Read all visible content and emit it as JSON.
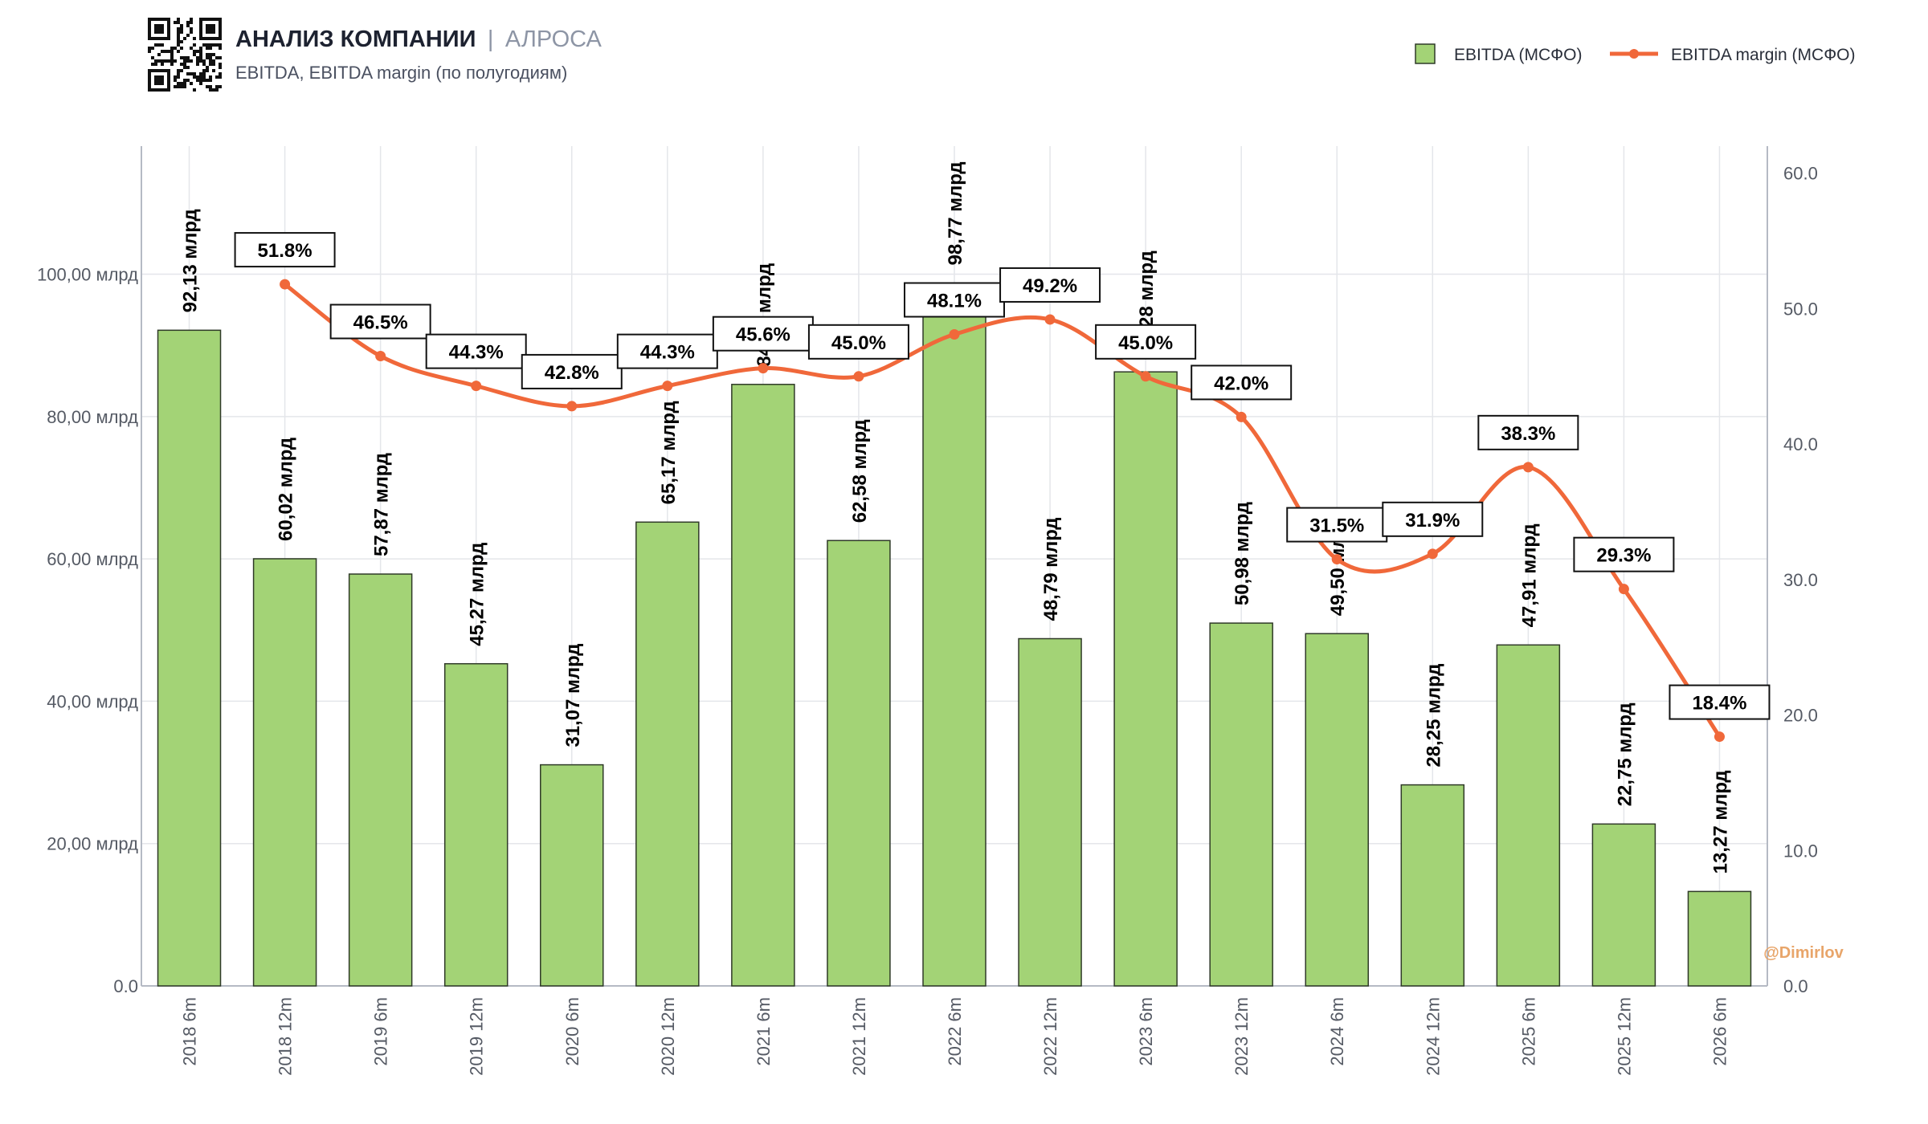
{
  "header": {
    "title": "АНАЛИЗ КОМПАНИИ",
    "separator": "|",
    "company": "АЛРОСА",
    "subtitle": "EBITDA, EBITDA margin (по полугодиям)"
  },
  "legend": {
    "bar": "EBITDA (МСФО)",
    "line": "EBITDA margin (МСФО)"
  },
  "watermark": "@Dimirlov",
  "colors": {
    "bar_fill": "#a3d376",
    "bar_stroke": "#2f3a28",
    "line": "#f0683a",
    "grid": "#e4e6ea",
    "axis": "#b5bac4"
  },
  "chart_data": {
    "type": "bar",
    "categories": [
      "2018 6m",
      "2018 12m",
      "2019 6m",
      "2019 12m",
      "2020 6m",
      "2020 12m",
      "2021 6m",
      "2021 12m",
      "2022 6m",
      "2022 12m",
      "2023 6m",
      "2023 12m",
      "2024 6m",
      "2024 12m",
      "2025 6m",
      "2025 12m",
      "2026 6m"
    ],
    "series": [
      {
        "name": "EBITDA (МСФО)",
        "type": "bar",
        "axis": "left",
        "values": [
          92.13,
          60.02,
          57.87,
          45.27,
          31.07,
          65.17,
          84.52,
          62.58,
          98.77,
          48.79,
          86.28,
          50.98,
          49.5,
          28.25,
          47.91,
          22.75,
          13.27
        ],
        "labels": [
          "92,13 млрд",
          "60,02 млрд",
          "57,87 млрд",
          "45,27 млрд",
          "31,07 млрд",
          "65,17 млрд",
          "84,52 млрд",
          "62,58 млрд",
          "98,77 млрд",
          "48,79 млрд",
          "86,28 млрд",
          "50,98 млрд",
          "49,50 млрд",
          "28,25 млрд",
          "47,91 млрд",
          "22,75 млрд",
          "13,27 млрд"
        ]
      },
      {
        "name": "EBITDA margin (МСФО)",
        "type": "line",
        "axis": "right",
        "values": [
          null,
          51.8,
          46.5,
          44.3,
          42.8,
          44.3,
          45.6,
          45.0,
          48.1,
          49.2,
          45.0,
          42.0,
          31.5,
          31.9,
          38.3,
          29.3,
          18.4
        ],
        "labels": [
          null,
          "51.8%",
          "46.5%",
          "44.3%",
          "42.8%",
          "44.3%",
          "45.6%",
          "45.0%",
          "48.1%",
          "49.2%",
          "45.0%",
          "42.0%",
          "31.5%",
          "31.9%",
          "38.3%",
          "29.3%",
          "18.4%"
        ]
      }
    ],
    "y_left": {
      "range": [
        0,
        118
      ],
      "ticks": [
        0,
        20,
        40,
        60,
        80,
        100
      ],
      "tick_labels": [
        "0.0",
        "20,00 млрд",
        "40,00 млрд",
        "60,00 млрд",
        "80,00 млрд",
        "100,00 млрд"
      ]
    },
    "y_right": {
      "range": [
        0,
        62
      ],
      "ticks": [
        0,
        10,
        20,
        30,
        40,
        50,
        60
      ],
      "tick_labels": [
        "0.0",
        "10.0",
        "20.0",
        "30.0",
        "40.0",
        "50.0",
        "60.0"
      ]
    },
    "grid": true,
    "legend_position": "top-right"
  }
}
